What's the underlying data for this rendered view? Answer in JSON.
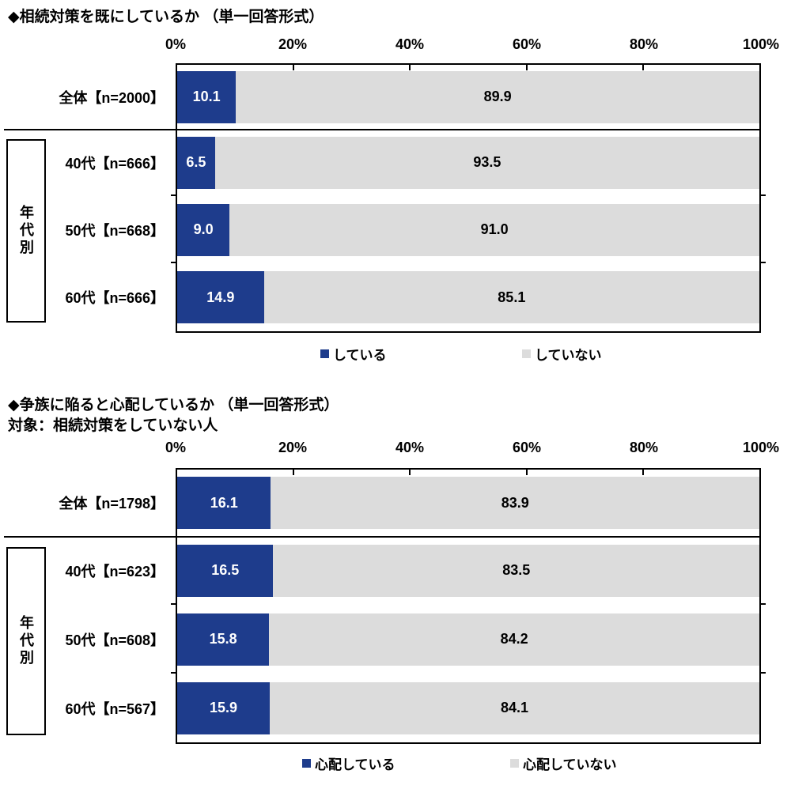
{
  "colors": {
    "bar_primary": "#1e3c8c",
    "bar_secondary": "#dcdcdc",
    "border": "#000000",
    "background": "#ffffff"
  },
  "chart_data": [
    {
      "type": "bar",
      "orientation": "horizontal",
      "stacked": true,
      "title": "◆相続対策を既にしているか （単一回答形式）",
      "group_label": "年代別",
      "categories": [
        "全体【n=2000】",
        "40代【n=666】",
        "50代【n=668】",
        "60代【n=666】"
      ],
      "series": [
        {
          "name": "している",
          "color": "#1e3c8c",
          "label_color": "#ffffff",
          "values": [
            10.1,
            6.5,
            9.0,
            14.9
          ]
        },
        {
          "name": "していない",
          "color": "#dcdcdc",
          "label_color": "#000000",
          "values": [
            89.9,
            93.5,
            91.0,
            85.1
          ]
        }
      ],
      "x_axis": {
        "min": 0,
        "max": 100,
        "ticks": [
          "0%",
          "20%",
          "40%",
          "60%",
          "80%",
          "100%"
        ]
      },
      "legend": [
        "している",
        "していない"
      ],
      "legend_position": "bottom"
    },
    {
      "type": "bar",
      "orientation": "horizontal",
      "stacked": true,
      "title": "◆争族に陥ると心配しているか （単一回答形式）",
      "subtitle": "対象：相続対策をしていない人",
      "group_label": "年代別",
      "categories": [
        "全体【n=1798】",
        "40代【n=623】",
        "50代【n=608】",
        "60代【n=567】"
      ],
      "series": [
        {
          "name": "心配している",
          "color": "#1e3c8c",
          "label_color": "#ffffff",
          "values": [
            16.1,
            16.5,
            15.8,
            15.9
          ]
        },
        {
          "name": "心配していない",
          "color": "#dcdcdc",
          "label_color": "#000000",
          "values": [
            83.9,
            83.5,
            84.2,
            84.1
          ]
        }
      ],
      "x_axis": {
        "min": 0,
        "max": 100,
        "ticks": [
          "0%",
          "20%",
          "40%",
          "60%",
          "80%",
          "100%"
        ]
      },
      "legend": [
        "心配している",
        "心配していない"
      ],
      "legend_position": "bottom"
    }
  ]
}
